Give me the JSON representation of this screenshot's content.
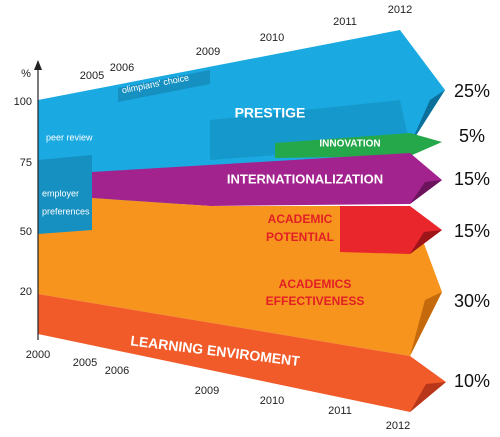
{
  "axis": {
    "unit": "%",
    "ticks": [
      "100",
      "75",
      "50",
      "20"
    ]
  },
  "years_top": [
    "2005",
    "2006",
    "2009",
    "2010",
    "2011",
    "2012"
  ],
  "years_bottom": [
    "2000",
    "2005",
    "2006",
    "2009",
    "2010",
    "2011",
    "2012"
  ],
  "notes": {
    "peer_review": "peer review",
    "olimpians_choice": "olimpians' choice",
    "employer_preferences": [
      "employer",
      "preferences"
    ]
  },
  "segments": [
    {
      "label": [
        "PRESTIGE"
      ],
      "share": "25%"
    },
    {
      "label": [
        "INNOVATION"
      ],
      "share": "5%"
    },
    {
      "label": [
        "INTERNATIONALIZATION"
      ],
      "share": "15%"
    },
    {
      "label": [
        "ACADEMIC",
        "POTENTIAL"
      ],
      "share": "15%"
    },
    {
      "label": [
        "ACADEMICS",
        "EFFECTIVENESS"
      ],
      "share": "30%"
    },
    {
      "label": [
        "LEARNING ENVIROMENT"
      ],
      "share": "10%"
    }
  ]
}
